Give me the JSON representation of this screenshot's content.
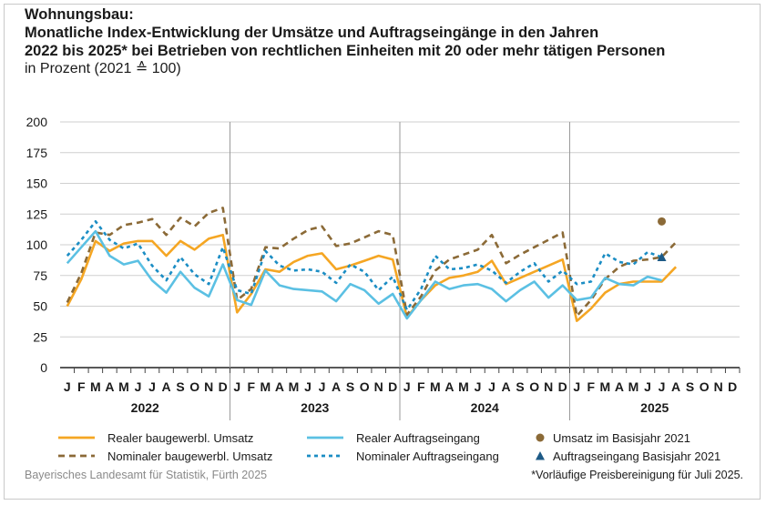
{
  "chart_data": {
    "type": "line",
    "title": "Wohnungsbau:",
    "title_line2": "Monatliche Index-Entwicklung der Umsätze und Auftragseingänge in den Jahren",
    "title_line3": "2022 bis 2025* bei Betrieben von rechtlichen Einheiten mit 20 oder mehr tätigen Personen",
    "subtitle": "in Prozent (2021 ≙ 100)",
    "ylim": [
      0,
      200
    ],
    "yticks": [
      0,
      25,
      50,
      75,
      100,
      125,
      150,
      175,
      200
    ],
    "grid": true,
    "months": [
      "J",
      "F",
      "M",
      "A",
      "M",
      "J",
      "J",
      "A",
      "S",
      "O",
      "N",
      "D"
    ],
    "years": [
      "2022",
      "2023",
      "2024",
      "2025"
    ],
    "series": [
      {
        "name": "Realer baugewerbl. Umsatz",
        "color": "#f5a623",
        "dash": "solid",
        "values": [
          50,
          72,
          103,
          95,
          101,
          103,
          103,
          91,
          103,
          96,
          105,
          108,
          45,
          60,
          80,
          78,
          86,
          91,
          93,
          80,
          83,
          87,
          91,
          88,
          41,
          55,
          67,
          73,
          75,
          78,
          87,
          68,
          73,
          78,
          83,
          88,
          38,
          48,
          61,
          68,
          70,
          70,
          70,
          82
        ]
      },
      {
        "name": "Nominaler baugewerbl. Umsatz",
        "color": "#8b6a37",
        "dash": "dash",
        "values": [
          53,
          77,
          110,
          108,
          116,
          118,
          121,
          108,
          122,
          115,
          126,
          130,
          55,
          64,
          98,
          97,
          105,
          112,
          115,
          99,
          101,
          106,
          111,
          108,
          43,
          58,
          79,
          88,
          92,
          96,
          108,
          85,
          92,
          98,
          104,
          110,
          42,
          55,
          72,
          82,
          87,
          88,
          90,
          102
        ]
      },
      {
        "name": "Realer Auftragseingang",
        "color": "#5bc0e3",
        "dash": "solid",
        "values": [
          85,
          98,
          111,
          91,
          84,
          87,
          71,
          61,
          78,
          65,
          58,
          84,
          55,
          51,
          79,
          67,
          64,
          63,
          62,
          54,
          68,
          63,
          52,
          60,
          40,
          55,
          70,
          64,
          67,
          68,
          64,
          54,
          63,
          70,
          57,
          67,
          55,
          57,
          73,
          68,
          67,
          74,
          71
        ]
      },
      {
        "name": "Nominaler Auftragseingang",
        "color": "#1b8dc4",
        "dash": "dot",
        "values": [
          91,
          104,
          119,
          104,
          97,
          101,
          83,
          71,
          90,
          76,
          68,
          98,
          63,
          60,
          95,
          83,
          79,
          80,
          78,
          69,
          84,
          78,
          63,
          74,
          47,
          64,
          91,
          80,
          81,
          84,
          79,
          69,
          78,
          85,
          70,
          79,
          68,
          70,
          93,
          86,
          84,
          94,
          90
        ]
      }
    ],
    "markers": [
      {
        "name": "Umsatz im Basisjahr 2021",
        "color": "#8b6a37",
        "shape": "circle",
        "index": 42,
        "value": 119
      },
      {
        "name": "Auftragseingang Basisjahr 2021",
        "color": "#1d5a86",
        "shape": "triangle",
        "index": 42,
        "value": 90
      }
    ]
  },
  "footer": {
    "source": "Bayerisches Landesamt für Statistik, Fürth 2025",
    "note": "*Vorläufige Preisbereinigung für Juli 2025."
  }
}
